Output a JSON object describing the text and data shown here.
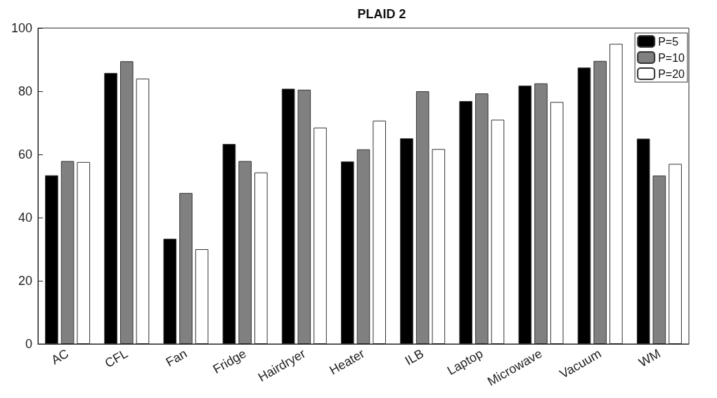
{
  "chart_data": {
    "type": "bar",
    "title": "PLAID 2",
    "categories": [
      "AC",
      "CFL",
      "Fan",
      "Fridge",
      "Hairdryer",
      "Heater",
      "ILB",
      "Laptop",
      "Microwave",
      "Vacuum",
      "WM"
    ],
    "series": [
      {
        "name": "P=5",
        "color": "#000000",
        "values": [
          53.4,
          85.8,
          33.3,
          63.3,
          80.8,
          57.8,
          65.1,
          76.9,
          81.8,
          87.5,
          65
        ]
      },
      {
        "name": "P=10",
        "color": "#808080",
        "values": [
          57.9,
          89.5,
          47.8,
          57.9,
          80.5,
          61.6,
          80,
          79.3,
          82.5,
          89.6,
          53.3
        ]
      },
      {
        "name": "P=20",
        "color": "#ffffff",
        "values": [
          57.6,
          84,
          30,
          54.3,
          68.5,
          70.7,
          61.7,
          71,
          76.6,
          95,
          57
        ]
      }
    ],
    "ylim": [
      0,
      100
    ],
    "yticks": [
      0,
      20,
      40,
      60,
      80,
      100
    ],
    "grid": false,
    "legend": "top right"
  }
}
